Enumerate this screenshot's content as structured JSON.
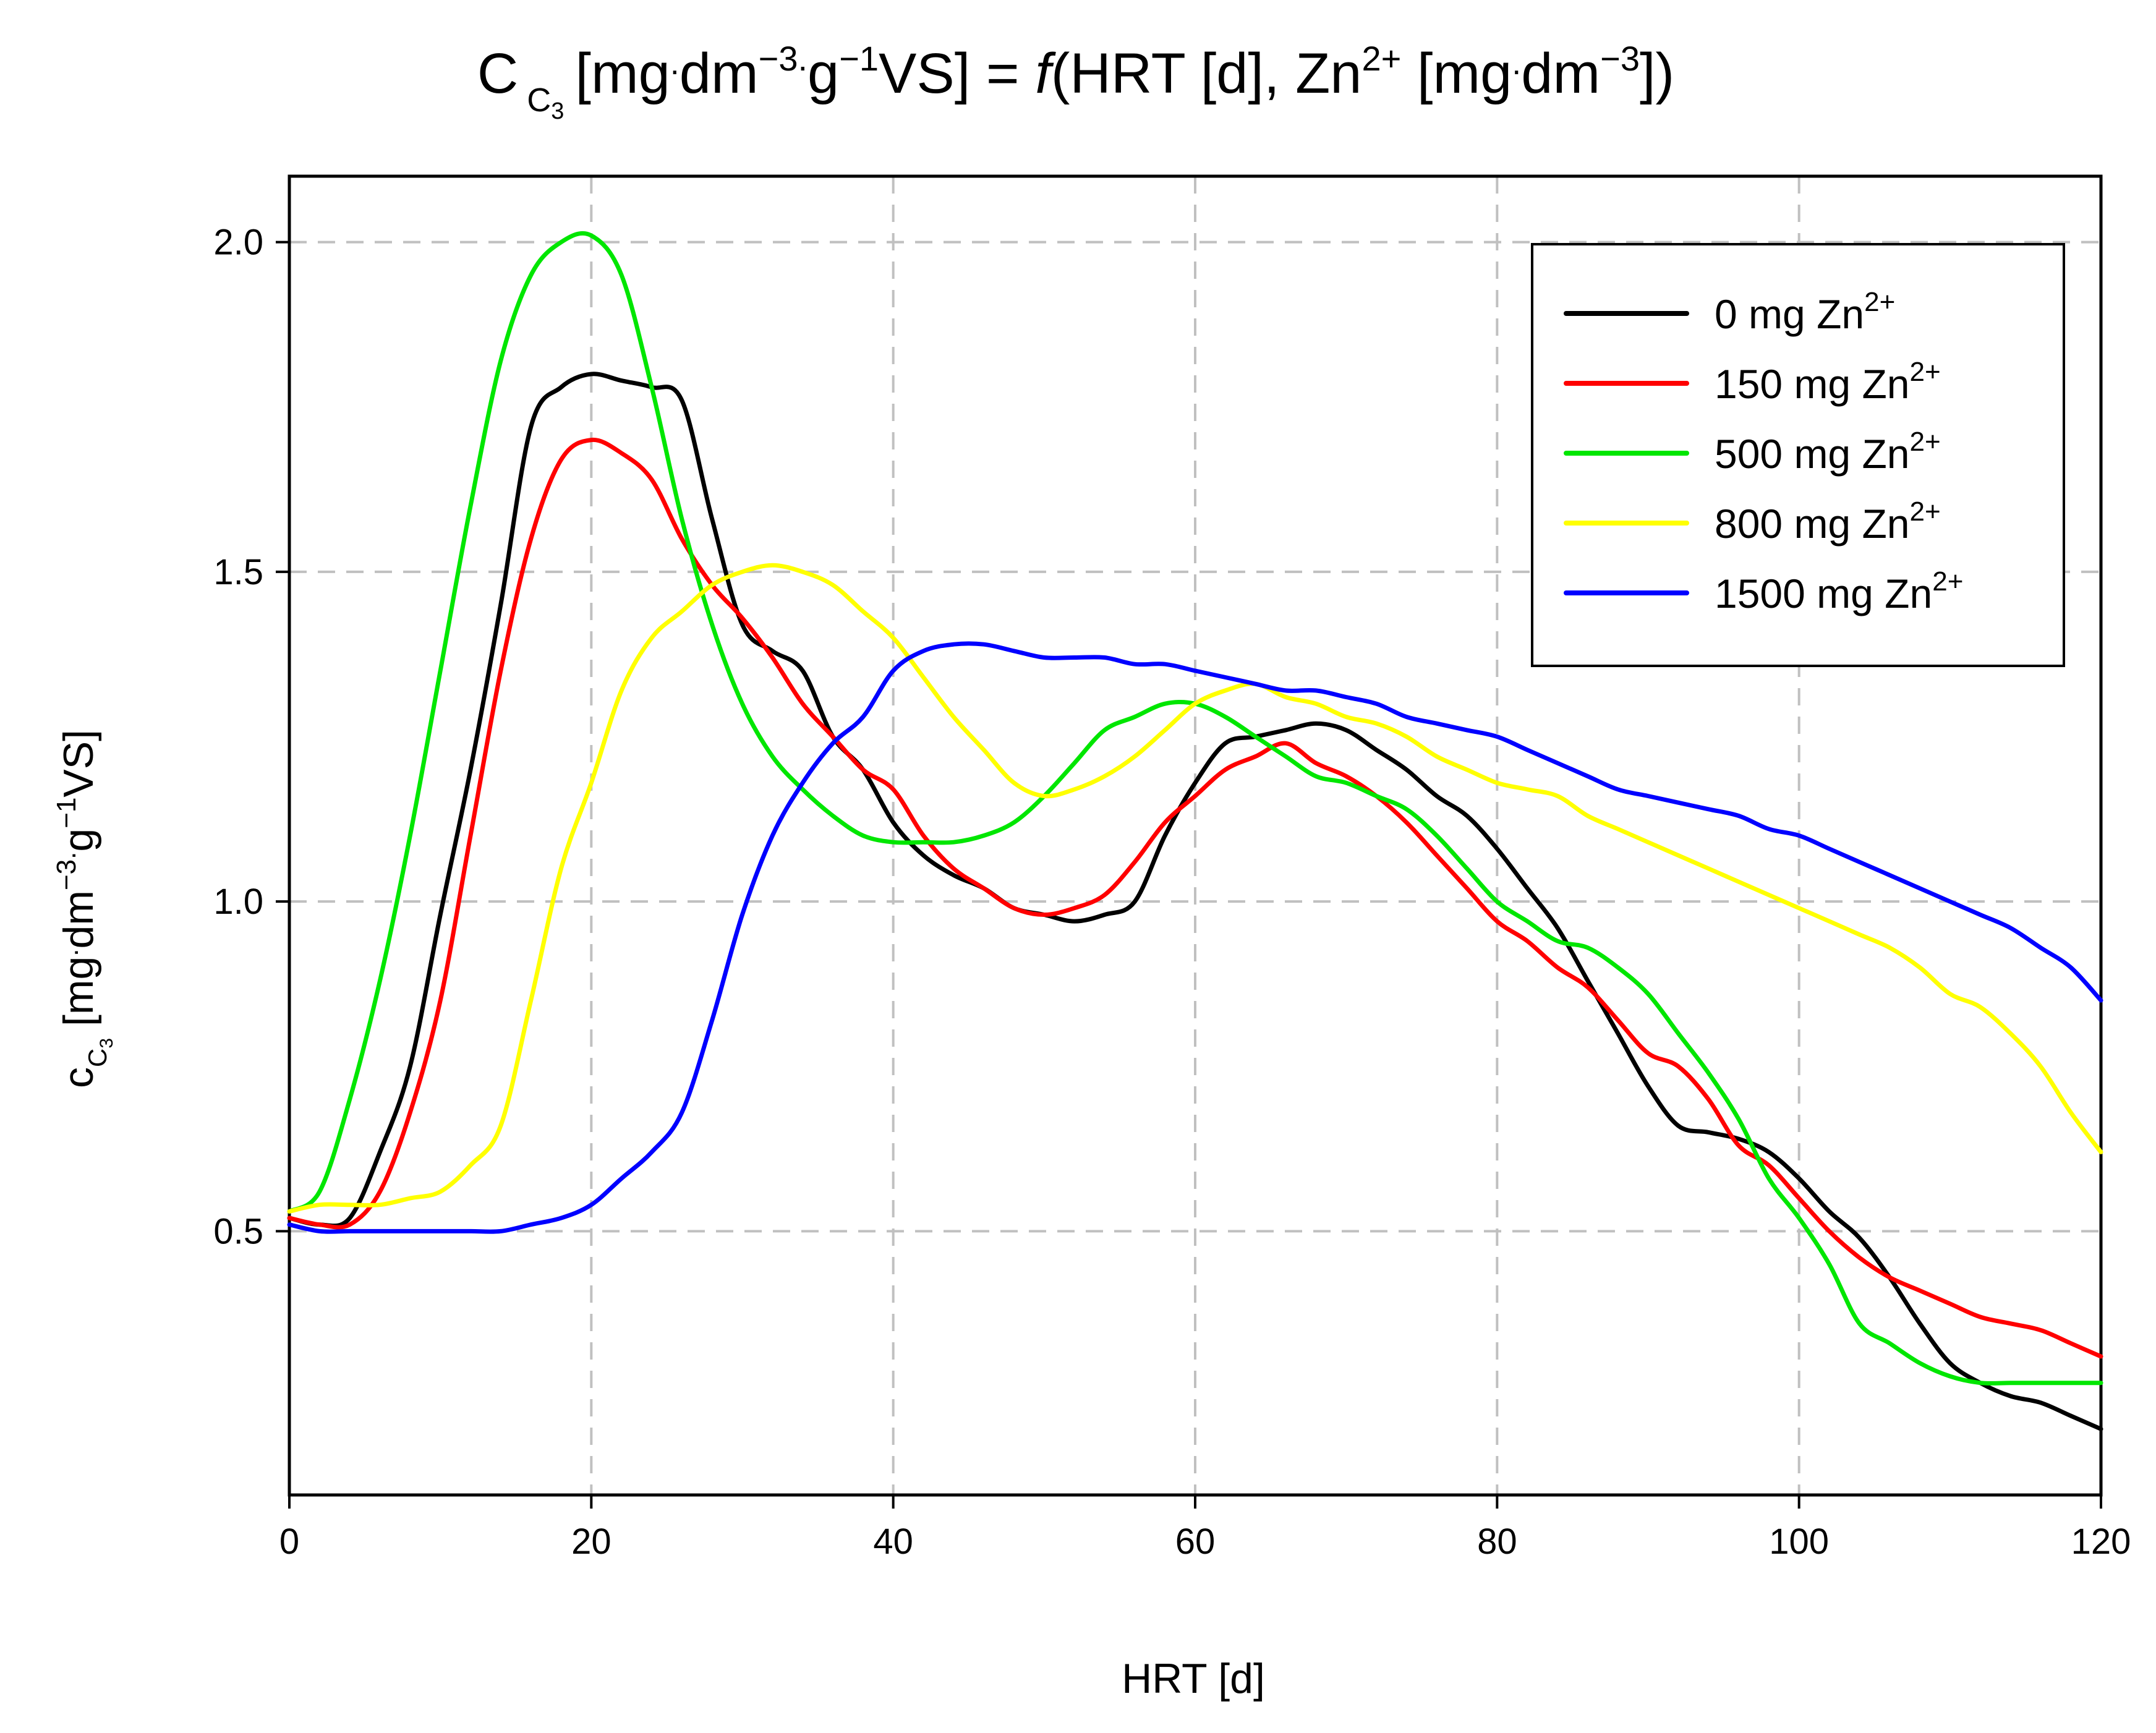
{
  "chart_data": {
    "type": "line",
    "title": {
      "main": "C",
      "sub": "C",
      "subsub": "3",
      "part1": "[mg",
      "dot1": ".",
      "part2": "dm",
      "sup1": "−3.",
      "part3": "g",
      "sup2": "−1",
      "part4": "VS] = ",
      "func": "f",
      "part5": "(HRT [d], Zn",
      "sup3": "2+",
      "part6": " [mg",
      "dot2": ".",
      "part7": "dm",
      "sup4": "−3",
      "part8": "])"
    },
    "xlabel": "HRT [d]",
    "ylabel": {
      "main": "c",
      "sub": "C",
      "subsub": "3",
      "part1": " [mg",
      "dot1": ".",
      "part2": "dm",
      "sup1": "−3.",
      "part3": "g",
      "sup2": "−1",
      "part4": "VS]"
    },
    "xlim": [
      0,
      120
    ],
    "ylim": [
      0.1,
      2.1
    ],
    "xticks": [
      0,
      20,
      40,
      60,
      80,
      100,
      120
    ],
    "xtick_labels": [
      "0",
      "20",
      "40",
      "60",
      "80",
      "100",
      "120"
    ],
    "yticks": [
      0.5,
      1.0,
      1.5,
      2.0
    ],
    "ytick_labels": [
      "0.5",
      "1.0",
      "1.5",
      "2.0"
    ],
    "grid": true,
    "legend_position": "top-right",
    "series": [
      {
        "name": "0 mg Zn2+",
        "legend_prefix": "0 mg Zn",
        "legend_sup": "2+",
        "color": "#000000",
        "x": [
          0,
          2,
          4,
          6,
          8,
          10,
          12,
          14,
          16,
          18,
          20,
          22,
          24,
          26,
          28,
          30,
          32,
          34,
          36,
          38,
          40,
          42,
          44,
          46,
          48,
          50,
          52,
          54,
          56,
          58,
          60,
          62,
          64,
          66,
          68,
          70,
          72,
          74,
          76,
          78,
          80,
          82,
          84,
          86,
          88,
          90,
          92,
          94,
          96,
          98,
          100,
          102,
          104,
          106,
          108,
          110,
          112,
          114,
          116,
          118,
          120
        ],
        "values": [
          0.52,
          0.51,
          0.52,
          0.62,
          0.75,
          0.98,
          1.2,
          1.45,
          1.72,
          1.78,
          1.8,
          1.79,
          1.78,
          1.76,
          1.58,
          1.42,
          1.38,
          1.35,
          1.25,
          1.2,
          1.12,
          1.07,
          1.04,
          1.02,
          0.99,
          0.98,
          0.97,
          0.98,
          1.0,
          1.1,
          1.18,
          1.24,
          1.25,
          1.26,
          1.27,
          1.26,
          1.23,
          1.2,
          1.16,
          1.13,
          1.08,
          1.02,
          0.96,
          0.88,
          0.8,
          0.72,
          0.66,
          0.65,
          0.64,
          0.62,
          0.58,
          0.53,
          0.49,
          0.43,
          0.36,
          0.3,
          0.27,
          0.25,
          0.24,
          0.22,
          0.2
        ]
      },
      {
        "name": "150 mg Zn2+",
        "legend_prefix": "150 mg Zn",
        "legend_sup": "2+",
        "color": "#ff0000",
        "x": [
          0,
          2,
          4,
          6,
          8,
          10,
          12,
          14,
          16,
          18,
          20,
          22,
          24,
          26,
          28,
          30,
          32,
          34,
          36,
          38,
          40,
          42,
          44,
          46,
          48,
          50,
          52,
          54,
          56,
          58,
          60,
          62,
          64,
          66,
          68,
          70,
          72,
          74,
          76,
          78,
          80,
          82,
          84,
          86,
          88,
          90,
          92,
          94,
          96,
          98,
          100,
          102,
          104,
          106,
          108,
          110,
          112,
          114,
          116,
          118,
          120
        ],
        "values": [
          0.52,
          0.51,
          0.51,
          0.56,
          0.68,
          0.85,
          1.1,
          1.35,
          1.55,
          1.67,
          1.7,
          1.68,
          1.64,
          1.55,
          1.48,
          1.43,
          1.37,
          1.3,
          1.25,
          1.2,
          1.17,
          1.1,
          1.05,
          1.02,
          0.99,
          0.98,
          0.99,
          1.01,
          1.06,
          1.12,
          1.16,
          1.2,
          1.22,
          1.24,
          1.21,
          1.19,
          1.16,
          1.12,
          1.07,
          1.02,
          0.97,
          0.94,
          0.9,
          0.87,
          0.82,
          0.77,
          0.75,
          0.7,
          0.63,
          0.6,
          0.55,
          0.5,
          0.46,
          0.43,
          0.41,
          0.39,
          0.37,
          0.36,
          0.35,
          0.33,
          0.31
        ]
      },
      {
        "name": "500 mg Zn2+",
        "legend_prefix": "500 mg Zn",
        "legend_sup": "2+",
        "color": "#00e600",
        "x": [
          0,
          2,
          4,
          6,
          8,
          10,
          12,
          14,
          16,
          18,
          20,
          22,
          24,
          26,
          28,
          30,
          32,
          34,
          36,
          38,
          40,
          42,
          44,
          46,
          48,
          50,
          52,
          54,
          56,
          58,
          60,
          62,
          64,
          66,
          68,
          70,
          72,
          74,
          76,
          78,
          80,
          82,
          84,
          86,
          88,
          90,
          92,
          94,
          96,
          98,
          100,
          102,
          104,
          106,
          108,
          110,
          112,
          114,
          116,
          118,
          120
        ],
        "values": [
          0.53,
          0.56,
          0.7,
          0.88,
          1.1,
          1.35,
          1.6,
          1.82,
          1.95,
          2.0,
          2.01,
          1.95,
          1.78,
          1.58,
          1.42,
          1.3,
          1.22,
          1.17,
          1.13,
          1.1,
          1.09,
          1.09,
          1.09,
          1.1,
          1.12,
          1.16,
          1.21,
          1.26,
          1.28,
          1.3,
          1.3,
          1.28,
          1.25,
          1.22,
          1.19,
          1.18,
          1.16,
          1.14,
          1.1,
          1.05,
          1.0,
          0.97,
          0.94,
          0.93,
          0.9,
          0.86,
          0.8,
          0.74,
          0.67,
          0.58,
          0.52,
          0.45,
          0.36,
          0.33,
          0.3,
          0.28,
          0.27,
          0.27,
          0.27,
          0.27,
          0.27
        ]
      },
      {
        "name": "800 mg Zn2+",
        "legend_prefix": "800 mg Zn",
        "legend_sup": "2+",
        "color": "#ffff00",
        "x": [
          0,
          2,
          4,
          6,
          8,
          10,
          12,
          14,
          16,
          18,
          20,
          22,
          24,
          26,
          28,
          30,
          32,
          34,
          36,
          38,
          40,
          42,
          44,
          46,
          48,
          50,
          52,
          54,
          56,
          58,
          60,
          62,
          64,
          66,
          68,
          70,
          72,
          74,
          76,
          78,
          80,
          82,
          84,
          86,
          88,
          90,
          92,
          94,
          96,
          98,
          100,
          102,
          104,
          106,
          108,
          110,
          112,
          114,
          116,
          118,
          120
        ],
        "values": [
          0.53,
          0.54,
          0.54,
          0.54,
          0.55,
          0.56,
          0.6,
          0.66,
          0.85,
          1.05,
          1.18,
          1.32,
          1.4,
          1.44,
          1.48,
          1.5,
          1.51,
          1.5,
          1.48,
          1.44,
          1.4,
          1.34,
          1.28,
          1.23,
          1.18,
          1.16,
          1.17,
          1.19,
          1.22,
          1.26,
          1.3,
          1.32,
          1.33,
          1.31,
          1.3,
          1.28,
          1.27,
          1.25,
          1.22,
          1.2,
          1.18,
          1.17,
          1.16,
          1.13,
          1.11,
          1.09,
          1.07,
          1.05,
          1.03,
          1.01,
          0.99,
          0.97,
          0.95,
          0.93,
          0.9,
          0.86,
          0.84,
          0.8,
          0.75,
          0.68,
          0.62
        ]
      },
      {
        "name": "1500 mg Zn2+",
        "legend_prefix": "1500 mg Zn",
        "legend_sup": "2+",
        "color": "#0000ff",
        "x": [
          0,
          2,
          4,
          6,
          8,
          10,
          12,
          14,
          16,
          18,
          20,
          22,
          24,
          26,
          28,
          30,
          32,
          34,
          36,
          38,
          40,
          42,
          44,
          46,
          48,
          50,
          52,
          54,
          56,
          58,
          60,
          62,
          64,
          66,
          68,
          70,
          72,
          74,
          76,
          78,
          80,
          82,
          84,
          86,
          88,
          90,
          92,
          94,
          96,
          98,
          100,
          102,
          104,
          106,
          108,
          110,
          112,
          114,
          116,
          118,
          120
        ],
        "values": [
          0.51,
          0.5,
          0.5,
          0.5,
          0.5,
          0.5,
          0.5,
          0.5,
          0.51,
          0.52,
          0.54,
          0.58,
          0.62,
          0.68,
          0.82,
          0.98,
          1.1,
          1.18,
          1.24,
          1.28,
          1.35,
          1.38,
          1.39,
          1.39,
          1.38,
          1.37,
          1.37,
          1.37,
          1.36,
          1.36,
          1.35,
          1.34,
          1.33,
          1.32,
          1.32,
          1.31,
          1.3,
          1.28,
          1.27,
          1.26,
          1.25,
          1.23,
          1.21,
          1.19,
          1.17,
          1.16,
          1.15,
          1.14,
          1.13,
          1.11,
          1.1,
          1.08,
          1.06,
          1.04,
          1.02,
          1.0,
          0.98,
          0.96,
          0.93,
          0.9,
          0.85
        ]
      }
    ]
  },
  "colors": {
    "grid": "#c0c0c0",
    "axis": "#000000",
    "background": "#ffffff"
  }
}
